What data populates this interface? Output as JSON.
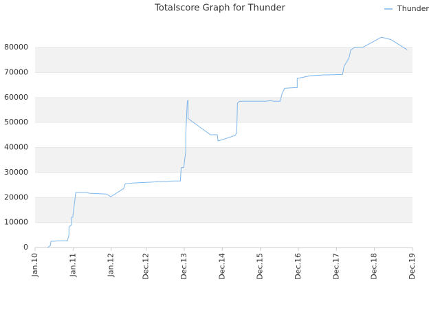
{
  "chart_data": {
    "type": "line",
    "title": "Totalscore Graph for Thunder",
    "series": [
      {
        "name": "Thunder",
        "color": "#7cb5ec",
        "x": [
          2010.33,
          2010.4,
          2010.42,
          2010.52,
          2010.58,
          2010.85,
          2010.89,
          2010.89,
          2010.96,
          2010.96,
          2010.99,
          2011.07,
          2011.37,
          2011.43,
          2011.88,
          2011.99,
          2012.33,
          2012.37,
          2012.55,
          2012.97,
          2013.65,
          2013.82,
          2013.84,
          2013.91,
          2013.93,
          2013.96,
          2013.96,
          2014.0,
          2014.02,
          2014.02,
          2014.61,
          2014.79,
          2014.81,
          2015.26,
          2015.3,
          2015.32,
          2015.37,
          2016.06,
          2016.2,
          2016.27,
          2016.44,
          2016.49,
          2016.56,
          2016.89,
          2016.89,
          2017.23,
          2017.54,
          2018.08,
          2018.12,
          2018.25,
          2018.3,
          2018.39,
          2018.63,
          2019.1,
          2019.35,
          2019.78
        ],
        "values": [
          0,
          800,
          2500,
          2500,
          2700,
          2700,
          4900,
          8200,
          9100,
          12100,
          12100,
          22000,
          22000,
          21700,
          21400,
          20300,
          23600,
          25500,
          25800,
          26100,
          26600,
          26600,
          31900,
          32100,
          34900,
          38500,
          45300,
          58200,
          59100,
          51600,
          45100,
          45100,
          42600,
          44800,
          45900,
          57700,
          58500,
          58500,
          58800,
          58500,
          58500,
          61500,
          63700,
          64000,
          67600,
          68700,
          69000,
          69200,
          72500,
          75800,
          79100,
          79900,
          80200,
          84100,
          83200,
          79100
        ]
      }
    ],
    "xlim": [
      2010,
      2019.92
    ],
    "xticks": [
      {
        "value": 2010.0,
        "label": "Jan.10"
      },
      {
        "value": 2011.0,
        "label": "Jan.11"
      },
      {
        "value": 2012.0,
        "label": "Jan.12"
      },
      {
        "value": 2012.92,
        "label": "Dec.12"
      },
      {
        "value": 2013.92,
        "label": "Dec.13"
      },
      {
        "value": 2014.92,
        "label": "Dec.14"
      },
      {
        "value": 2015.92,
        "label": "Dec.15"
      },
      {
        "value": 2016.92,
        "label": "Dec.16"
      },
      {
        "value": 2017.92,
        "label": "Dec.17"
      },
      {
        "value": 2018.92,
        "label": "Dec.18"
      },
      {
        "value": 2019.92,
        "label": "Dec.19"
      }
    ],
    "ylim": [
      0,
      88000
    ],
    "yticks": [
      0,
      10000,
      20000,
      30000,
      40000,
      50000,
      60000,
      70000,
      80000
    ],
    "grid": true,
    "legend": "top-right"
  }
}
